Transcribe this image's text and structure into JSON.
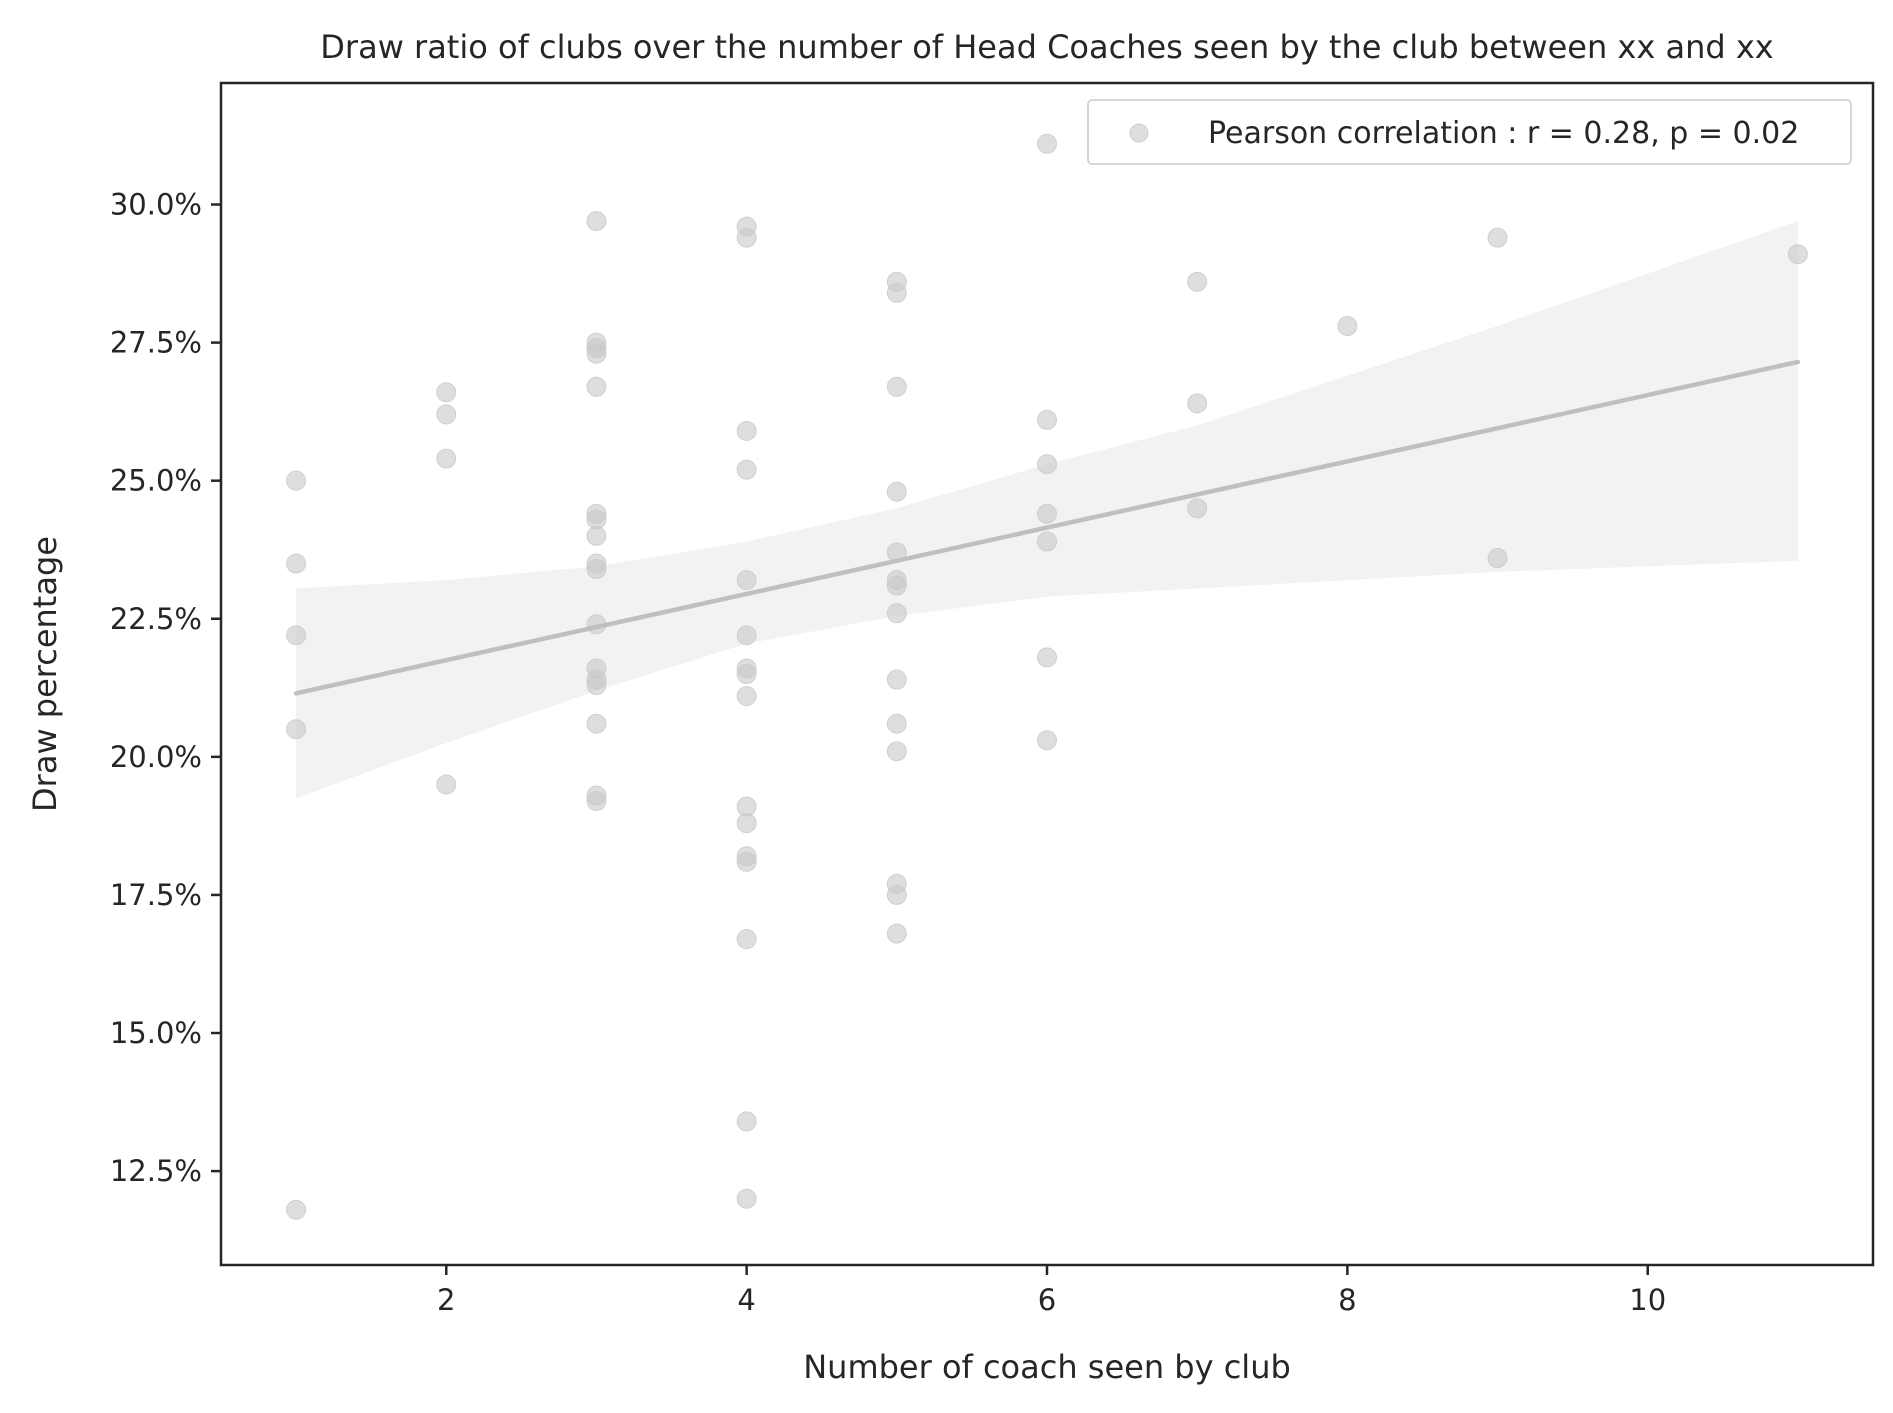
{
  "chart_data": {
    "type": "scatter",
    "title": "Draw ratio of clubs over the number of Head Coaches seen by the club between xx and xx",
    "xlabel": "Number of coach seen by club",
    "ylabel": "Draw percentage",
    "xlim": [
      0.5,
      11.5
    ],
    "ylim": [
      10.8,
      32.2
    ],
    "xticks": [
      2,
      4,
      6,
      8,
      10
    ],
    "xtick_labels": [
      "2",
      "4",
      "6",
      "8",
      "10"
    ],
    "yticks": [
      12.5,
      15.0,
      17.5,
      20.0,
      22.5,
      25.0,
      27.5,
      30.0
    ],
    "ytick_labels": [
      "12.5%",
      "15.0%",
      "17.5%",
      "20.0%",
      "22.5%",
      "25.0%",
      "27.5%",
      "30.0%"
    ],
    "grid": false,
    "legend": {
      "placement": "top-right",
      "entries": [
        "Pearson correlation : r = 0.28, p = 0.02"
      ]
    },
    "series": [
      {
        "name": "Pearson correlation : r = 0.28, p = 0.02",
        "color": "#c8c8c8",
        "points": [
          [
            1,
            25.0
          ],
          [
            1,
            23.5
          ],
          [
            1,
            22.2
          ],
          [
            1,
            20.5
          ],
          [
            1,
            11.8
          ],
          [
            2,
            26.6
          ],
          [
            2,
            26.2
          ],
          [
            2,
            25.4
          ],
          [
            2,
            19.5
          ],
          [
            3,
            29.7
          ],
          [
            3,
            27.5
          ],
          [
            3,
            27.4
          ],
          [
            3,
            27.3
          ],
          [
            3,
            26.7
          ],
          [
            3,
            24.4
          ],
          [
            3,
            24.3
          ],
          [
            3,
            24.0
          ],
          [
            3,
            23.5
          ],
          [
            3,
            23.4
          ],
          [
            3,
            22.4
          ],
          [
            3,
            21.6
          ],
          [
            3,
            21.4
          ],
          [
            3,
            21.3
          ],
          [
            3,
            20.6
          ],
          [
            3,
            19.3
          ],
          [
            3,
            19.2
          ],
          [
            4,
            29.6
          ],
          [
            4,
            29.4
          ],
          [
            4,
            25.9
          ],
          [
            4,
            25.2
          ],
          [
            4,
            23.2
          ],
          [
            4,
            22.2
          ],
          [
            4,
            21.6
          ],
          [
            4,
            21.5
          ],
          [
            4,
            21.1
          ],
          [
            4,
            19.1
          ],
          [
            4,
            18.8
          ],
          [
            4,
            18.2
          ],
          [
            4,
            18.1
          ],
          [
            4,
            16.7
          ],
          [
            4,
            13.4
          ],
          [
            4,
            12.0
          ],
          [
            5,
            28.6
          ],
          [
            5,
            28.4
          ],
          [
            5,
            26.7
          ],
          [
            5,
            24.8
          ],
          [
            5,
            23.7
          ],
          [
            5,
            23.2
          ],
          [
            5,
            23.1
          ],
          [
            5,
            22.6
          ],
          [
            5,
            21.4
          ],
          [
            5,
            20.6
          ],
          [
            5,
            20.1
          ],
          [
            5,
            17.7
          ],
          [
            5,
            17.5
          ],
          [
            5,
            16.8
          ],
          [
            6,
            31.1
          ],
          [
            6,
            26.1
          ],
          [
            6,
            25.3
          ],
          [
            6,
            24.4
          ],
          [
            6,
            23.9
          ],
          [
            6,
            21.8
          ],
          [
            6,
            20.3
          ],
          [
            7,
            28.6
          ],
          [
            7,
            26.4
          ],
          [
            7,
            24.5
          ],
          [
            8,
            27.8
          ],
          [
            9,
            29.4
          ],
          [
            9,
            23.6
          ],
          [
            11,
            29.1
          ]
        ]
      }
    ],
    "regression": {
      "color": "#bfbfbf",
      "line": [
        [
          1,
          21.15
        ],
        [
          11,
          27.15
        ]
      ],
      "ci_band": {
        "x": [
          1,
          2,
          3,
          4,
          5,
          6,
          7,
          8,
          9,
          10,
          11
        ],
        "upper": [
          23.05,
          23.2,
          23.45,
          23.9,
          24.5,
          25.3,
          26.0,
          26.9,
          27.8,
          28.75,
          29.7
        ],
        "lower": [
          19.25,
          20.25,
          21.2,
          22.05,
          22.55,
          22.9,
          23.05,
          23.2,
          23.35,
          23.45,
          23.55
        ]
      },
      "band_color": "#f2f2f2"
    }
  }
}
